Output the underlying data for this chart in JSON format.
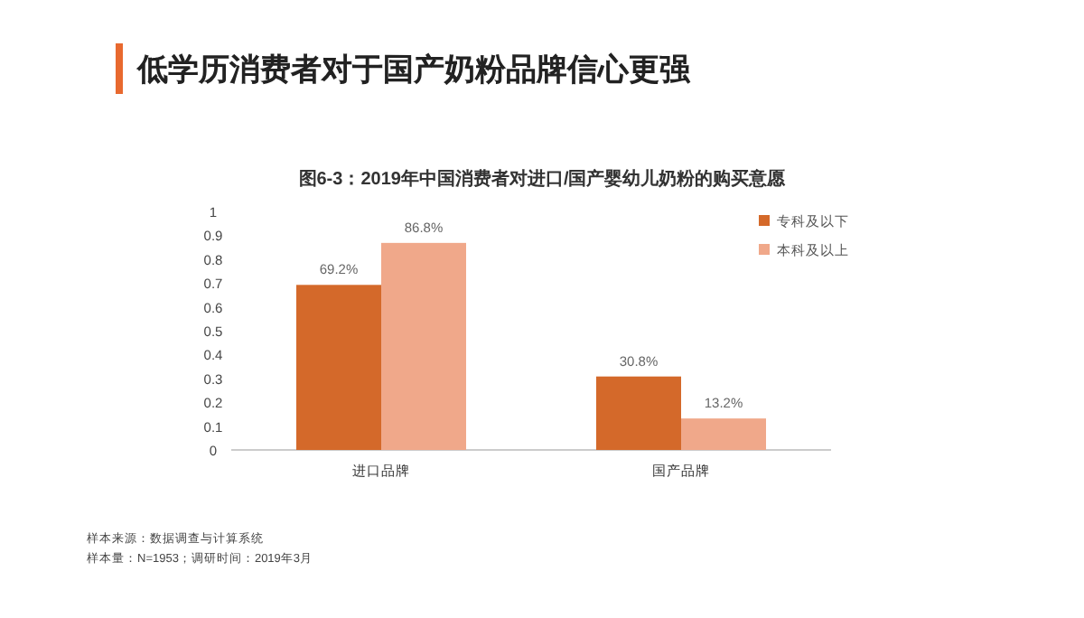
{
  "chart_data": {
    "type": "bar",
    "title": "低学历消费者对于国产奶粉品牌信心更强",
    "subtitle": "图6-3：2019年中国消费者对进口/国产婴幼儿奶粉的购买意愿",
    "categories": [
      "进口品牌",
      "国产品牌"
    ],
    "series": [
      {
        "name": "专科及以下",
        "color": "#d4692a",
        "values": [
          0.692,
          0.308
        ],
        "value_labels": [
          "69.2%",
          "30.8%"
        ]
      },
      {
        "name": "本科及以上",
        "color": "#f0a88a",
        "values": [
          0.868,
          0.132
        ],
        "value_labels": [
          "86.8%",
          "13.2%"
        ]
      }
    ],
    "ylim": [
      0,
      1
    ],
    "yticks": [
      0,
      0.1,
      0.2,
      0.3,
      0.4,
      0.5,
      0.6,
      0.7,
      0.8,
      0.9,
      1
    ],
    "grid": false,
    "legend": "top right",
    "annotations": [
      "样本来源：数据调查与计算系统",
      "样本量：N=1953；调研时间：2019年3月"
    ]
  }
}
